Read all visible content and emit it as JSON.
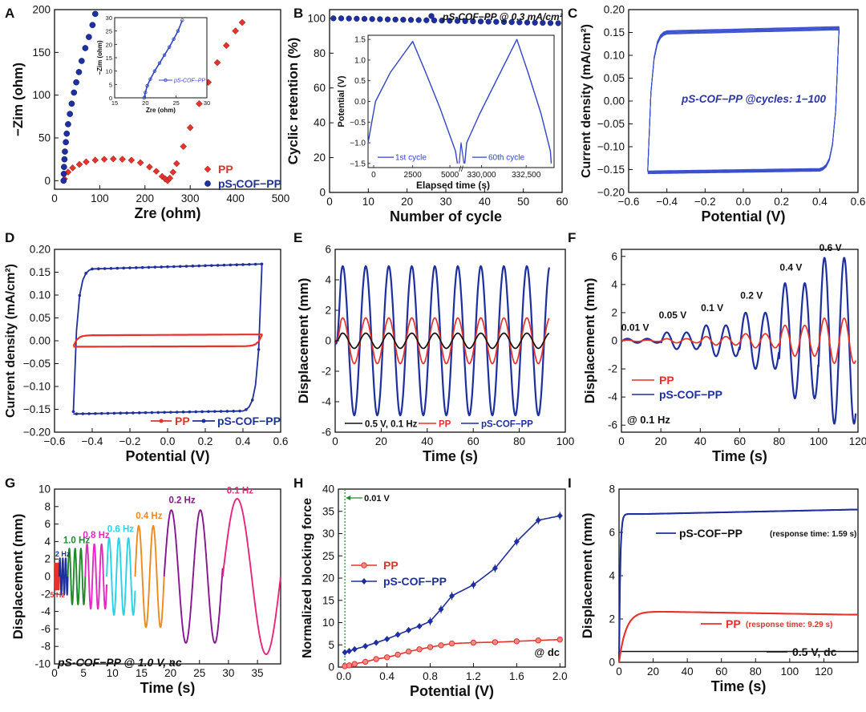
{
  "chart_data": [
    {
      "id": "A",
      "panel_label": "A",
      "type": "scatter",
      "xlabel": "Zre (ohm)",
      "ylabel": "−Zim (ohm)",
      "xlim": [
        0,
        500
      ],
      "ylim": [
        -10,
        200
      ],
      "xticks": [
        0,
        100,
        200,
        300,
        400,
        500
      ],
      "yticks": [
        0,
        50,
        100,
        150,
        200
      ],
      "legend": "bottom-right",
      "series": [
        {
          "name": "PP",
          "color": "#e8312a",
          "marker": "diamond",
          "x": [
            22,
            30,
            40,
            55,
            70,
            90,
            110,
            130,
            150,
            170,
            190,
            210,
            225,
            238,
            245,
            250,
            255,
            262,
            270,
            285,
            300,
            320,
            340,
            360,
            380,
            400,
            415
          ],
          "y": [
            2,
            10,
            15,
            19,
            22,
            24,
            25,
            25.5,
            25,
            24,
            21,
            16,
            11,
            5,
            2,
            0,
            3,
            10,
            20,
            40,
            62,
            90,
            115,
            138,
            158,
            175,
            185
          ]
        },
        {
          "name": "pS-COF−PP",
          "color": "#1e2f9e",
          "marker": "circle",
          "x": [
            20,
            20.5,
            21,
            22,
            23,
            25,
            27,
            30,
            34,
            38,
            43,
            48,
            54,
            60,
            68,
            76,
            84,
            90
          ],
          "y": [
            0,
            8,
            16,
            25,
            34,
            45,
            55,
            66,
            78,
            90,
            103,
            115,
            127,
            140,
            155,
            168,
            182,
            195
          ]
        }
      ],
      "inset": {
        "xlabel": "Zre (ohm)",
        "ylabel": "−Zim (ohm)",
        "xlim": [
          15,
          30
        ],
        "ylim": [
          0,
          30
        ],
        "xticks": [
          15,
          20,
          25,
          30
        ],
        "yticks": [
          0,
          5,
          10,
          15,
          20,
          25,
          30
        ],
        "legend": "pS-COF−PP",
        "x": [
          19.8,
          20,
          20.3,
          20.8,
          21.5,
          22.3,
          23.1,
          23.9,
          24.6,
          25.3,
          26
        ],
        "y": [
          0,
          2,
          4.5,
          7,
          10,
          13,
          16,
          19,
          22,
          25,
          29
        ]
      }
    },
    {
      "id": "B",
      "panel_label": "B",
      "type": "scatter",
      "xlabel": "Number of cycle",
      "ylabel": "Cyclic retention (%)",
      "xlim": [
        0,
        60
      ],
      "ylim": [
        0,
        105
      ],
      "xticks": [
        0,
        10,
        20,
        30,
        40,
        50,
        60
      ],
      "yticks": [
        0,
        20,
        40,
        60,
        80,
        100
      ],
      "legend": "top-right",
      "series": [
        {
          "name": "pS-COF−PP @ 0.3 mA/cm²",
          "color": "#1e2f9e",
          "x": [
            1,
            3,
            5,
            7,
            9,
            11,
            13,
            15,
            17,
            19,
            21,
            23,
            25,
            27,
            29,
            31,
            33,
            35,
            37,
            39,
            41,
            43,
            45,
            47,
            49,
            51,
            53,
            55,
            57,
            59
          ],
          "y": [
            100,
            100,
            99.9,
            99.8,
            99.7,
            99.6,
            99.5,
            99.4,
            99.3,
            99.2,
            99.1,
            99,
            98.9,
            98.8,
            98.7,
            98.6,
            98.5,
            98.4,
            98.3,
            98.2,
            98.1,
            98,
            97.9,
            97.8,
            97.7,
            97.6,
            97.5,
            97.4,
            97.3,
            97.2
          ]
        }
      ],
      "inset": {
        "xlabel": "Elapsed time (s)",
        "ylabel": "Potential (V)",
        "ylim": [
          -1.6,
          1.6
        ],
        "yticks": [
          -1.5,
          -1.0,
          -0.5,
          0.0,
          0.5,
          1.0,
          1.5
        ],
        "xtick_labels": [
          "0",
          "2500",
          "5000",
          "330,000",
          "332,500"
        ],
        "annotations": [
          "1st cycle",
          "60th cycle"
        ]
      }
    },
    {
      "id": "C",
      "panel_label": "C",
      "type": "line",
      "xlabel": "Potential (V)",
      "ylabel": "Current density (mA/cm²)",
      "xlim": [
        -0.6,
        0.6
      ],
      "ylim": [
        -0.2,
        0.2
      ],
      "xticks": [
        -0.6,
        -0.4,
        -0.2,
        0.0,
        0.2,
        0.4,
        0.6
      ],
      "yticks": [
        -0.2,
        -0.15,
        -0.1,
        -0.05,
        0.0,
        0.05,
        0.1,
        0.15,
        0.2
      ],
      "annotation": "pS-COF−PP @cycles: 1−100",
      "series": [
        {
          "name": "pS-COF−PP",
          "color": "#3a4fcf",
          "x_range": [
            -0.5,
            0.5
          ],
          "upper": 0.155,
          "lower": -0.155
        }
      ]
    },
    {
      "id": "D",
      "panel_label": "D",
      "type": "line",
      "xlabel": "Potential (V)",
      "ylabel": "Current density (mA/cm²)",
      "xlim": [
        -0.6,
        0.6
      ],
      "ylim": [
        -0.2,
        0.2
      ],
      "xticks": [
        -0.6,
        -0.4,
        -0.2,
        0.0,
        0.2,
        0.4,
        0.6
      ],
      "yticks": [
        -0.2,
        -0.15,
        -0.1,
        -0.05,
        0.0,
        0.05,
        0.1,
        0.15,
        0.2
      ],
      "legend": "bottom",
      "series": [
        {
          "name": "PP",
          "color": "#e8312a",
          "x_range": [
            -0.5,
            0.5
          ],
          "upper": 0.012,
          "lower": -0.012
        },
        {
          "name": "pS-COF−PP",
          "color": "#1e2f9e",
          "x_range": [
            -0.5,
            0.5
          ],
          "upper": 0.158,
          "lower": -0.155
        }
      ]
    },
    {
      "id": "E",
      "panel_label": "E",
      "type": "line",
      "xlabel": "Time (s)",
      "ylabel": "Displacement (mm)",
      "xlim": [
        0,
        100
      ],
      "ylim": [
        -6,
        6
      ],
      "xticks": [
        0,
        20,
        40,
        60,
        80,
        100
      ],
      "yticks": [
        -6,
        -4,
        -2,
        0,
        2,
        4,
        6
      ],
      "legend": "bottom",
      "series": [
        {
          "name": "0.5 V, 0.1 Hz",
          "color": "#111111",
          "amplitude": 0.5,
          "period_s": 10,
          "duration_s": 93
        },
        {
          "name": "PP",
          "color": "#e8312a",
          "amplitude": 1.5,
          "period_s": 10,
          "duration_s": 93
        },
        {
          "name": "pS-COF−PP",
          "color": "#1e2f9e",
          "amplitude": 4.9,
          "period_s": 10,
          "duration_s": 93
        }
      ]
    },
    {
      "id": "F",
      "panel_label": "F",
      "type": "line",
      "xlabel": "Time (s)",
      "ylabel": "Displacement (mm)",
      "xlim": [
        0,
        120
      ],
      "ylim": [
        -6.5,
        6.5
      ],
      "xticks": [
        0,
        20,
        40,
        60,
        80,
        100,
        120
      ],
      "yticks": [
        -6,
        -4,
        -2,
        0,
        2,
        4,
        6
      ],
      "legend": "bottom-left",
      "note": "@ 0.1 Hz",
      "annotations": [
        {
          "text": "0.01 V",
          "x": 7,
          "y": 0.7
        },
        {
          "text": "0.05 V",
          "x": 26,
          "y": 1.6
        },
        {
          "text": "0.1 V",
          "x": 46,
          "y": 2.1
        },
        {
          "text": "0.2 V",
          "x": 66,
          "y": 3.0
        },
        {
          "text": "0.4 V",
          "x": 86,
          "y": 5.0
        },
        {
          "text": "0.6 V",
          "x": 106,
          "y": 6.4
        }
      ],
      "segments": [
        {
          "voltage": "0.01 V",
          "t": [
            0,
            20
          ],
          "pscof_amp": 0.15,
          "pp_amp": 0.05
        },
        {
          "voltage": "0.05 V",
          "t": [
            20,
            40
          ],
          "pscof_amp": 0.6,
          "pp_amp": 0.15
        },
        {
          "voltage": "0.1 V",
          "t": [
            40,
            60
          ],
          "pscof_amp": 1.1,
          "pp_amp": 0.3
        },
        {
          "voltage": "0.2 V",
          "t": [
            60,
            80
          ],
          "pscof_amp": 2.0,
          "pp_amp": 0.5
        },
        {
          "voltage": "0.4 V",
          "t": [
            80,
            100
          ],
          "pscof_amp": 4.1,
          "pp_amp": 1.1
        },
        {
          "voltage": "0.6 V",
          "t": [
            100,
            120
          ],
          "pscof_amp": 5.9,
          "pp_amp": 1.6
        }
      ],
      "series": [
        {
          "name": "PP",
          "color": "#e8312a"
        },
        {
          "name": "pS-COF−PP",
          "color": "#1e2f9e"
        }
      ]
    },
    {
      "id": "G",
      "panel_label": "G",
      "type": "line",
      "xlabel": "Time (s)",
      "ylabel": "Displacement (mm)",
      "xlim": [
        0,
        39
      ],
      "ylim": [
        -10,
        10
      ],
      "xticks": [
        0,
        5,
        10,
        15,
        20,
        25,
        30,
        35
      ],
      "yticks": [
        -10,
        -8,
        -6,
        -4,
        -2,
        0,
        2,
        4,
        6,
        8,
        10
      ],
      "note": "pS-COF−PP @ 1.0 V, ac",
      "segments": [
        {
          "label": "5 Hz",
          "color": "#e8312a",
          "t": [
            0,
            0.8
          ],
          "freq": 5,
          "amp": 1.5
        },
        {
          "label": "2 Hz",
          "color": "#1e2f9e",
          "t": [
            0.8,
            2.3
          ],
          "freq": 2,
          "amp": 2.1
        },
        {
          "label": "1.0 Hz",
          "color": "#1f8a2b",
          "t": [
            2.3,
            5.3
          ],
          "freq": 1.0,
          "amp": 3.2
        },
        {
          "label": "0.8 Hz",
          "color": "#e528c3",
          "t": [
            5.3,
            9.0
          ],
          "freq": 0.8,
          "amp": 3.7
        },
        {
          "label": "0.6 Hz",
          "color": "#27d3e8",
          "t": [
            9.0,
            13.9
          ],
          "freq": 0.6,
          "amp": 4.4
        },
        {
          "label": "0.4 Hz",
          "color": "#ef8a1e",
          "t": [
            13.9,
            18.9
          ],
          "freq": 0.4,
          "amp": 5.8
        },
        {
          "label": "0.2 Hz",
          "color": "#86168f",
          "t": [
            18.9,
            29
          ],
          "freq": 0.2,
          "amp": 7.6
        },
        {
          "label": "0.1 Hz",
          "color": "#e7257c",
          "t": [
            29,
            39
          ],
          "freq": 0.1,
          "amp": 8.9
        }
      ]
    },
    {
      "id": "H",
      "panel_label": "H",
      "type": "line",
      "xlabel": "Potential (V)",
      "ylabel": "Normalized blocking force",
      "xlim": [
        -0.05,
        2.05
      ],
      "ylim": [
        0,
        40
      ],
      "xticks": [
        0.0,
        0.4,
        0.8,
        1.2,
        1.6,
        2.0
      ],
      "yticks": [
        0,
        5,
        10,
        15,
        20,
        25,
        30,
        35,
        40
      ],
      "legend": "center-left",
      "note": "@ dc",
      "marker_label": "0.01 V",
      "series": [
        {
          "name": "PP",
          "color": "#e8312a",
          "x": [
            0.01,
            0.05,
            0.1,
            0.2,
            0.3,
            0.4,
            0.5,
            0.6,
            0.7,
            0.8,
            0.9,
            1.0,
            1.2,
            1.4,
            1.6,
            1.8,
            2.0
          ],
          "y": [
            0.2,
            0.4,
            0.7,
            1.2,
            1.8,
            2.2,
            2.8,
            3.5,
            4.0,
            4.5,
            4.9,
            5.3,
            5.5,
            5.6,
            5.8,
            6.0,
            6.2
          ]
        },
        {
          "name": "pS-COF−PP",
          "color": "#1e2f9e",
          "x": [
            0.01,
            0.05,
            0.1,
            0.2,
            0.3,
            0.4,
            0.5,
            0.6,
            0.7,
            0.8,
            0.9,
            1.0,
            1.2,
            1.4,
            1.6,
            1.8,
            2.0
          ],
          "y": [
            3.3,
            3.6,
            4.0,
            4.7,
            5.5,
            6.3,
            7.3,
            8.3,
            9.2,
            10.3,
            13.0,
            16.0,
            18.5,
            22.2,
            28.2,
            33.0,
            34.0
          ]
        }
      ]
    },
    {
      "id": "I",
      "panel_label": "I",
      "type": "line",
      "xlabel": "Time (s)",
      "ylabel": "Displacement (mm)",
      "xlim": [
        0,
        140
      ],
      "ylim": [
        0,
        8
      ],
      "xticks": [
        0,
        20,
        40,
        60,
        80,
        100,
        120
      ],
      "yticks": [
        0,
        2,
        4,
        6,
        8
      ],
      "legend": "bottom-right",
      "series": [
        {
          "name": "0.5 V, dc",
          "color": "#111111"
        },
        {
          "name": "pS-COF−PP",
          "legend_suffix": "(response time: 1.59 s)",
          "color": "#1e2f9e",
          "plateau": 6.85,
          "final": 7.05,
          "response_s": 1.59
        },
        {
          "name": "PP",
          "legend_suffix": "(response time: 9.29 s)",
          "color": "#e8312a",
          "plateau": 2.35,
          "final": 2.2,
          "response_s": 9.29
        }
      ]
    }
  ]
}
